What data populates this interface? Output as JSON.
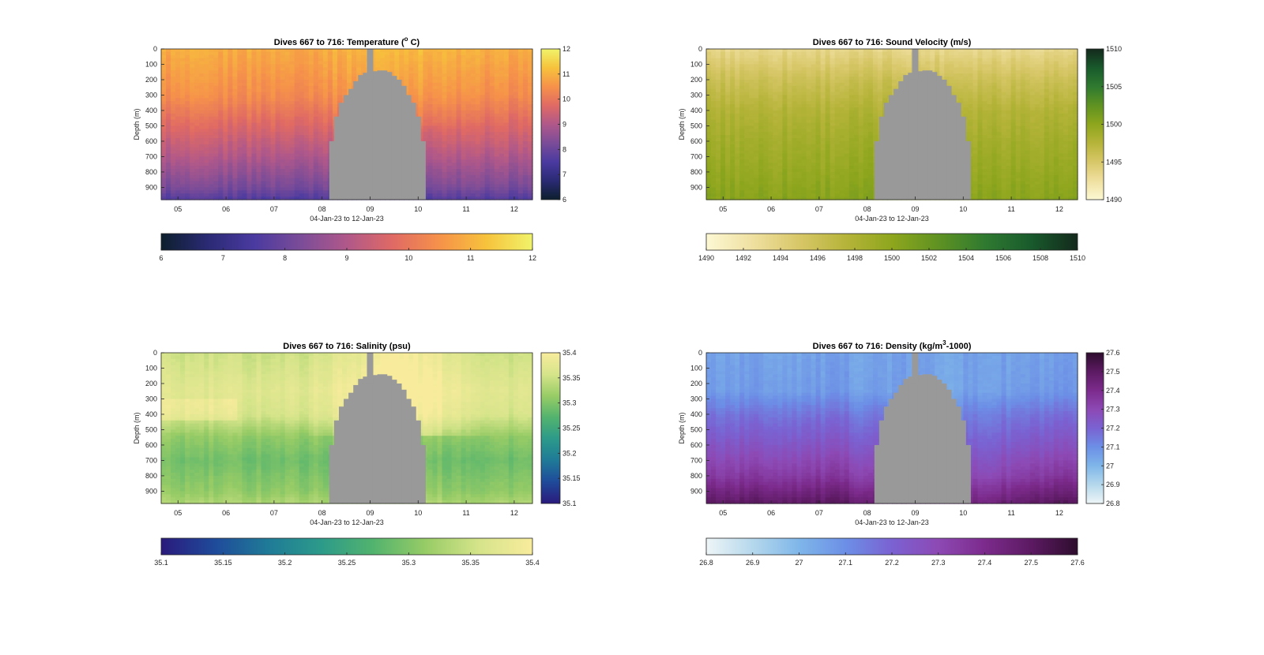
{
  "figure": {
    "x_axis_label": "04-Jan-23 to 12-Jan-23",
    "y_axis_label": "Depth (m)",
    "no_data_color": "#999999"
  },
  "chart_data": [
    {
      "type": "heatmap",
      "title": "Dives 667 to 716: Temperature (° C)",
      "title_parts": [
        "Dives 667 to 716: Temperature (",
        "o",
        " C)"
      ],
      "xlabel": "04-Jan-23 to 12-Jan-23",
      "ylabel": "Depth (m)",
      "x_ticks": [
        "05",
        "06",
        "07",
        "08",
        "09",
        "10",
        "11",
        "12"
      ],
      "y_ticks": [
        "0",
        "100",
        "200",
        "300",
        "400",
        "500",
        "600",
        "700",
        "800",
        "900"
      ],
      "xlim_days": [
        4.65,
        12.38
      ],
      "ylim": [
        0,
        980
      ],
      "clim": [
        6,
        12
      ],
      "colorbar_vertical_ticks": [
        "6",
        "7",
        "8",
        "9",
        "10",
        "11",
        "12"
      ],
      "colorbar_horizontal_ticks": [
        "6",
        "7",
        "8",
        "9",
        "10",
        "11",
        "12"
      ],
      "colormap": [
        "#0d1f2d",
        "#2a2a74",
        "#4a3aa0",
        "#7b4c98",
        "#b0588a",
        "#e06a64",
        "#f6924a",
        "#f7c23c",
        "#f0f36a"
      ],
      "surface_value": 10.9,
      "bottom_value": 7.6,
      "depth_gradient": [
        {
          "depth": 0,
          "value": 10.9
        },
        {
          "depth": 300,
          "value": 10.4
        },
        {
          "depth": 500,
          "value": 9.7
        },
        {
          "depth": 700,
          "value": 9.0
        },
        {
          "depth": 900,
          "value": 8.2
        },
        {
          "depth": 980,
          "value": 7.6
        }
      ],
      "shallow_ends_value": 11.1
    },
    {
      "type": "heatmap",
      "title": "Dives 667 to 716: Sound Velocity (m/s)",
      "title_parts": [
        "Dives 667 to 716: Sound Velocity (m/s)",
        "",
        ""
      ],
      "xlabel": "04-Jan-23 to 12-Jan-23",
      "ylabel": "Depth (m)",
      "x_ticks": [
        "05",
        "06",
        "07",
        "08",
        "09",
        "10",
        "11",
        "12"
      ],
      "y_ticks": [
        "0",
        "100",
        "200",
        "300",
        "400",
        "500",
        "600",
        "700",
        "800",
        "900"
      ],
      "xlim_days": [
        4.65,
        12.38
      ],
      "ylim": [
        0,
        980
      ],
      "clim": [
        1490,
        1510
      ],
      "colorbar_vertical_ticks": [
        "1490",
        "1495",
        "1500",
        "1505",
        "1510"
      ],
      "colorbar_horizontal_ticks": [
        "1490",
        "1492",
        "1494",
        "1496",
        "1498",
        "1500",
        "1502",
        "1504",
        "1506",
        "1508",
        "1510"
      ],
      "colormap": [
        "#fdf8d4",
        "#efe0a0",
        "#d8c768",
        "#b6b43a",
        "#8ea61d",
        "#5f9222",
        "#2f7a30",
        "#195a2c",
        "#13291c"
      ],
      "depth_gradient": [
        {
          "depth": 0,
          "value": 1493.5
        },
        {
          "depth": 200,
          "value": 1496.0
        },
        {
          "depth": 400,
          "value": 1497.8
        },
        {
          "depth": 600,
          "value": 1498.8
        },
        {
          "depth": 800,
          "value": 1499.6
        },
        {
          "depth": 980,
          "value": 1500.4
        }
      ]
    },
    {
      "type": "heatmap",
      "title": "Dives 667 to 716: Salinity (psu)",
      "title_parts": [
        "Dives 667 to 716: Salinity (psu)",
        "",
        ""
      ],
      "xlabel": "04-Jan-23 to 12-Jan-23",
      "ylabel": "Depth (m)",
      "x_ticks": [
        "05",
        "06",
        "07",
        "08",
        "09",
        "10",
        "11",
        "12"
      ],
      "y_ticks": [
        "0",
        "100",
        "200",
        "300",
        "400",
        "500",
        "600",
        "700",
        "800",
        "900"
      ],
      "xlim_days": [
        4.65,
        12.38
      ],
      "ylim": [
        0,
        980
      ],
      "clim": [
        35.1,
        35.4
      ],
      "colorbar_vertical_ticks": [
        "35.1",
        "35.15",
        "35.2",
        "35.25",
        "35.3",
        "35.35",
        "35.4"
      ],
      "colorbar_horizontal_ticks": [
        "35.1",
        "35.15",
        "35.2",
        "35.25",
        "35.3",
        "35.35",
        "35.4"
      ],
      "colormap": [
        "#2a1a7c",
        "#1f4a9a",
        "#1f7a98",
        "#2c9a8a",
        "#52b36e",
        "#98cc66",
        "#d6e48a",
        "#f8ec9c"
      ],
      "depth_gradient": [
        {
          "depth": 0,
          "value": 35.35
        },
        {
          "depth": 250,
          "value": 35.37
        },
        {
          "depth": 400,
          "value": 35.36
        },
        {
          "depth": 550,
          "value": 35.31
        },
        {
          "depth": 700,
          "value": 35.29
        },
        {
          "depth": 900,
          "value": 35.31
        },
        {
          "depth": 980,
          "value": 35.33
        }
      ],
      "near_gap_surface_value": 35.4
    },
    {
      "type": "heatmap",
      "title": "Dives 667 to 716: Density (kg/m³-1000)",
      "title_parts": [
        "Dives 667 to 716: Density (kg/m",
        "3",
        "-1000)"
      ],
      "xlabel": "04-Jan-23 to 12-Jan-23",
      "ylabel": "Depth (m)",
      "x_ticks": [
        "05",
        "06",
        "07",
        "08",
        "09",
        "10",
        "11",
        "12"
      ],
      "y_ticks": [
        "0",
        "100",
        "200",
        "300",
        "400",
        "500",
        "600",
        "700",
        "800",
        "900"
      ],
      "xlim_days": [
        4.65,
        12.38
      ],
      "ylim": [
        0,
        980
      ],
      "clim": [
        26.8,
        27.6
      ],
      "colorbar_vertical_ticks": [
        "26.8",
        "26.9",
        "27",
        "27.1",
        "27.2",
        "27.3",
        "27.4",
        "27.5",
        "27.6"
      ],
      "colorbar_horizontal_ticks": [
        "26.8",
        "26.9",
        "27",
        "27.1",
        "27.2",
        "27.3",
        "27.4",
        "27.5",
        "27.6"
      ],
      "colormap": [
        "#eef5f7",
        "#b5d8ec",
        "#7fb6e9",
        "#6c8fe6",
        "#7a62d2",
        "#8d49b4",
        "#7c2b8c",
        "#5c1a62",
        "#2e0d2e"
      ],
      "depth_gradient": [
        {
          "depth": 0,
          "value": 27.05
        },
        {
          "depth": 250,
          "value": 27.07
        },
        {
          "depth": 400,
          "value": 27.16
        },
        {
          "depth": 600,
          "value": 27.25
        },
        {
          "depth": 800,
          "value": 27.35
        },
        {
          "depth": 980,
          "value": 27.5
        }
      ]
    }
  ],
  "no_data_region": {
    "days": [
      8.2,
      8.3,
      8.4,
      8.5,
      8.6,
      8.7,
      8.8,
      8.9,
      9.0,
      9.1,
      9.2,
      9.3,
      9.4,
      9.5,
      9.6,
      9.7,
      9.8,
      9.9,
      10.0,
      10.1,
      10.2,
      10.3,
      10.4,
      10.5,
      10.6,
      10.7,
      10.8,
      10.9,
      11.0
    ],
    "top_depth_m": [
      600,
      440,
      350,
      300,
      260,
      210,
      170,
      155,
      150,
      145,
      140,
      140,
      150,
      175,
      200,
      240,
      300,
      350,
      440,
      600,
      980,
      980,
      980,
      980,
      980,
      980,
      980,
      980,
      980
    ],
    "spike_day": 9.0,
    "spike_top_m": 0
  }
}
